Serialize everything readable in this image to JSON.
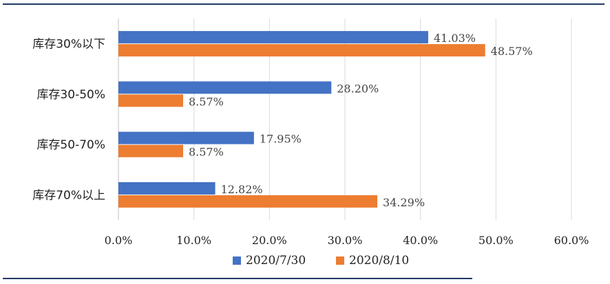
{
  "chart_data": {
    "type": "bar",
    "orientation": "horizontal",
    "categories": [
      "库存30%以下",
      "库存30-50%",
      "库存50-70%",
      "库存70%以上"
    ],
    "series": [
      {
        "name": "2020/7/30",
        "values": [
          41.03,
          28.2,
          17.95,
          12.82
        ],
        "labels": [
          "41.03%",
          "28.20%",
          "17.95%",
          "12.82%"
        ]
      },
      {
        "name": "2020/8/10",
        "values": [
          48.57,
          8.57,
          8.57,
          34.29
        ],
        "labels": [
          "48.57%",
          "8.57%",
          "8.57%",
          "34.29%"
        ]
      }
    ],
    "xlim": [
      0,
      60
    ],
    "ticks": [
      "0.0%",
      "10.0%",
      "20.0%",
      "30.0%",
      "40.0%",
      "50.0%",
      "60.0%"
    ],
    "grid": true,
    "legend": "bottom",
    "colors": [
      "#4472c4",
      "#ed7d31"
    ],
    "grid_color": "#d9d9d9"
  }
}
